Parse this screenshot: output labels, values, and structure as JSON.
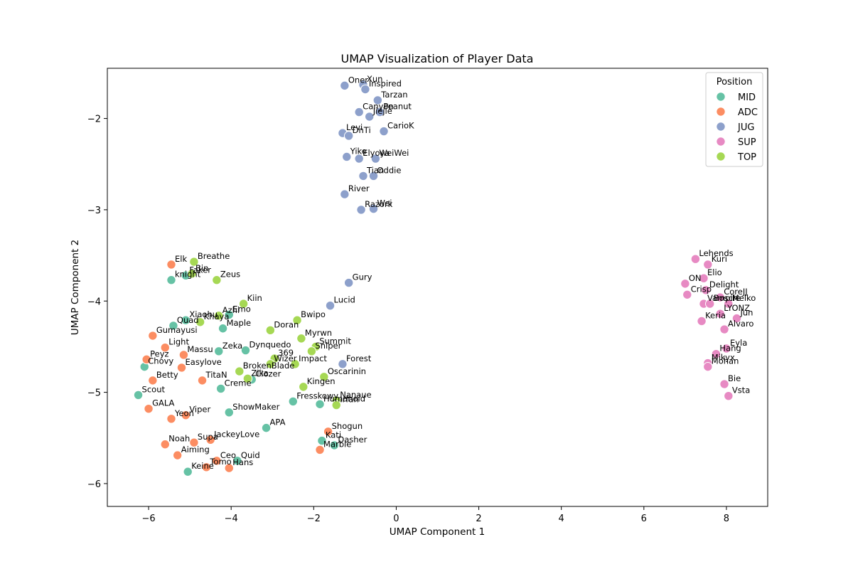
{
  "chart_data": {
    "type": "scatter",
    "title": "UMAP Visualization of Player Data",
    "xlabel": "UMAP Component 1",
    "ylabel": "UMAP Component 2",
    "xlim": [
      -7.0,
      9.0
    ],
    "ylim": [
      -6.25,
      -1.45
    ],
    "xticks": [
      -6,
      -4,
      -2,
      0,
      2,
      4,
      6,
      8
    ],
    "yticks": [
      -6,
      -5,
      -4,
      -3,
      -2
    ],
    "xtick_labels": [
      "−6",
      "−4",
      "−2",
      "0",
      "2",
      "4",
      "6",
      "8"
    ],
    "ytick_labels": [
      "−6",
      "−5",
      "−4",
      "−3",
      "−2"
    ],
    "grid": false,
    "legend": {
      "title": "Position",
      "placement": "top-right"
    },
    "series": [
      {
        "name": "MID",
        "color": "#66c2a5",
        "points": [
          {
            "label": "knight",
            "x": -5.45,
            "y": -3.77
          },
          {
            "label": "Faker",
            "x": -5.1,
            "y": -3.72
          },
          {
            "label": "Xiaohu",
            "x": -5.1,
            "y": -4.21
          },
          {
            "label": "Quad",
            "x": -5.4,
            "y": -4.27
          },
          {
            "label": "Chovy",
            "x": -6.1,
            "y": -4.72
          },
          {
            "label": "Scout",
            "x": -6.25,
            "y": -5.03
          },
          {
            "label": "Zeka",
            "x": -4.3,
            "y": -4.55
          },
          {
            "label": "Maple",
            "x": -4.2,
            "y": -4.3
          },
          {
            "label": "Emo",
            "x": -4.05,
            "y": -4.15
          },
          {
            "label": "Dynquedo",
            "x": -3.65,
            "y": -4.54
          },
          {
            "label": "Creme",
            "x": -4.25,
            "y": -4.96
          },
          {
            "label": "Clozer",
            "x": -3.5,
            "y": -4.86
          },
          {
            "label": "ShowMaker",
            "x": -4.05,
            "y": -5.22
          },
          {
            "label": "APA",
            "x": -3.15,
            "y": -5.39
          },
          {
            "label": "Fresskowy",
            "x": -2.5,
            "y": -5.1
          },
          {
            "label": "Humanoid",
            "x": -1.85,
            "y": -5.13
          },
          {
            "label": "Kati",
            "x": -1.8,
            "y": -5.53
          },
          {
            "label": "Dasher",
            "x": -1.5,
            "y": -5.58
          },
          {
            "label": "Quid",
            "x": -3.85,
            "y": -5.75
          },
          {
            "label": "Keine",
            "x": -5.05,
            "y": -5.87
          }
        ]
      },
      {
        "name": "ADC",
        "color": "#fc8d62",
        "points": [
          {
            "label": "Elk",
            "x": -5.45,
            "y": -3.6
          },
          {
            "label": "Gumayusi",
            "x": -5.9,
            "y": -4.38
          },
          {
            "label": "Light",
            "x": -5.6,
            "y": -4.51
          },
          {
            "label": "Peyz",
            "x": -6.05,
            "y": -4.64
          },
          {
            "label": "Massu",
            "x": -5.15,
            "y": -4.59
          },
          {
            "label": "Easylove",
            "x": -5.2,
            "y": -4.73
          },
          {
            "label": "Betty",
            "x": -5.9,
            "y": -4.87
          },
          {
            "label": "TitaN",
            "x": -4.7,
            "y": -4.87
          },
          {
            "label": "GALA",
            "x": -6.0,
            "y": -5.18
          },
          {
            "label": "Viper",
            "x": -5.1,
            "y": -5.25
          },
          {
            "label": "Yeon",
            "x": -5.45,
            "y": -5.29
          },
          {
            "label": "Noah",
            "x": -5.6,
            "y": -5.57
          },
          {
            "label": "Aiming",
            "x": -5.3,
            "y": -5.69
          },
          {
            "label": "Supa",
            "x": -4.9,
            "y": -5.55
          },
          {
            "label": "JackeyLove",
            "x": -4.5,
            "y": -5.52
          },
          {
            "label": "Ceo",
            "x": -4.35,
            "y": -5.75
          },
          {
            "label": "Tomo",
            "x": -4.6,
            "y": -5.82
          },
          {
            "label": "Hans",
            "x": -4.05,
            "y": -5.83
          },
          {
            "label": "Shogun",
            "x": -1.65,
            "y": -5.43
          },
          {
            "label": "Marble",
            "x": -1.85,
            "y": -5.63
          }
        ]
      },
      {
        "name": "JUG",
        "color": "#8da0cb",
        "points": [
          {
            "label": "Oner",
            "x": -1.25,
            "y": -1.64
          },
          {
            "label": "Xun",
            "x": -0.8,
            "y": -1.63
          },
          {
            "label": "Inspired",
            "x": -0.75,
            "y": -1.68
          },
          {
            "label": "Tarzan",
            "x": -0.45,
            "y": -1.8
          },
          {
            "label": "Canyon",
            "x": -0.9,
            "y": -1.93
          },
          {
            "label": "Jiejie",
            "x": -0.65,
            "y": -1.98
          },
          {
            "label": "Peanut",
            "x": -0.4,
            "y": -1.93
          },
          {
            "label": "CarioK",
            "x": -0.3,
            "y": -2.14
          },
          {
            "label": "Levi",
            "x": -1.3,
            "y": -2.16
          },
          {
            "label": "DnTi",
            "x": -1.15,
            "y": -2.19
          },
          {
            "label": "Yike",
            "x": -1.2,
            "y": -2.42
          },
          {
            "label": "Elyoya",
            "x": -0.9,
            "y": -2.44
          },
          {
            "label": "WeiWei",
            "x": -0.5,
            "y": -2.44
          },
          {
            "label": "Tian",
            "x": -0.8,
            "y": -2.63
          },
          {
            "label": "Oddie",
            "x": -0.55,
            "y": -2.63
          },
          {
            "label": "River",
            "x": -1.25,
            "y": -2.83
          },
          {
            "label": "Razork",
            "x": -0.85,
            "y": -3.0
          },
          {
            "label": "Wei",
            "x": -0.55,
            "y": -2.99
          },
          {
            "label": "Gury",
            "x": -1.15,
            "y": -3.8
          },
          {
            "label": "Lucid",
            "x": -1.6,
            "y": -4.05
          },
          {
            "label": "Forest",
            "x": -1.3,
            "y": -4.69
          }
        ]
      },
      {
        "name": "SUP",
        "color": "#e78ac3",
        "points": [
          {
            "label": "Lehends",
            "x": 7.25,
            "y": -3.54
          },
          {
            "label": "Kuri",
            "x": 7.55,
            "y": -3.6
          },
          {
            "label": "Elio",
            "x": 7.45,
            "y": -3.75
          },
          {
            "label": "ON",
            "x": 7.0,
            "y": -3.81
          },
          {
            "label": "Delight",
            "x": 7.5,
            "y": -3.88
          },
          {
            "label": "Crisp",
            "x": 7.05,
            "y": -3.93
          },
          {
            "label": "CoreJJ",
            "x": 7.85,
            "y": -3.96
          },
          {
            "label": "Vampire",
            "x": 7.45,
            "y": -4.03
          },
          {
            "label": "Bosch",
            "x": 7.6,
            "y": -4.03
          },
          {
            "label": "Meiko",
            "x": 8.05,
            "y": -4.03
          },
          {
            "label": "LYONZ",
            "x": 7.85,
            "y": -4.14
          },
          {
            "label": "Jun",
            "x": 8.25,
            "y": -4.19
          },
          {
            "label": "Keria",
            "x": 7.4,
            "y": -4.22
          },
          {
            "label": "Alvaro",
            "x": 7.95,
            "y": -4.31
          },
          {
            "label": "Eyla",
            "x": 8.0,
            "y": -4.52
          },
          {
            "label": "Hang",
            "x": 7.75,
            "y": -4.58
          },
          {
            "label": "Mikyx",
            "x": 7.55,
            "y": -4.68
          },
          {
            "label": "Mohan",
            "x": 7.55,
            "y": -4.72
          },
          {
            "label": "Bie",
            "x": 7.95,
            "y": -4.91
          },
          {
            "label": "Vsta",
            "x": 8.05,
            "y": -5.04
          }
        ]
      },
      {
        "name": "TOP",
        "color": "#a6d854",
        "points": [
          {
            "label": "Breathe",
            "x": -4.9,
            "y": -3.57
          },
          {
            "label": "Bin",
            "x": -4.95,
            "y": -3.7
          },
          {
            "label": "Zeus",
            "x": -4.35,
            "y": -3.77
          },
          {
            "label": "Kiin",
            "x": -3.7,
            "y": -4.03
          },
          {
            "label": "Khaya",
            "x": -4.75,
            "y": -4.23
          },
          {
            "label": "Azhi",
            "x": -4.3,
            "y": -4.16
          },
          {
            "label": "Doran",
            "x": -3.05,
            "y": -4.32
          },
          {
            "label": "Bwipo",
            "x": -2.4,
            "y": -4.21
          },
          {
            "label": "Myrwn",
            "x": -2.3,
            "y": -4.41
          },
          {
            "label": "Summit",
            "x": -1.95,
            "y": -4.5
          },
          {
            "label": "Sniper",
            "x": -2.05,
            "y": -4.55
          },
          {
            "label": "369",
            "x": -2.95,
            "y": -4.63
          },
          {
            "label": "Wizer",
            "x": -3.05,
            "y": -4.69
          },
          {
            "label": "Impact",
            "x": -2.45,
            "y": -4.69
          },
          {
            "label": "BrokenBlade",
            "x": -3.8,
            "y": -4.77
          },
          {
            "label": "Zika",
            "x": -3.6,
            "y": -4.85
          },
          {
            "label": "Oscarinin",
            "x": -1.75,
            "y": -4.83
          },
          {
            "label": "Kingen",
            "x": -2.25,
            "y": -4.94
          },
          {
            "label": "Nanaue",
            "x": -1.45,
            "y": -5.09
          },
          {
            "label": "Irfan",
            "x": -1.45,
            "y": -5.14
          }
        ]
      }
    ]
  }
}
